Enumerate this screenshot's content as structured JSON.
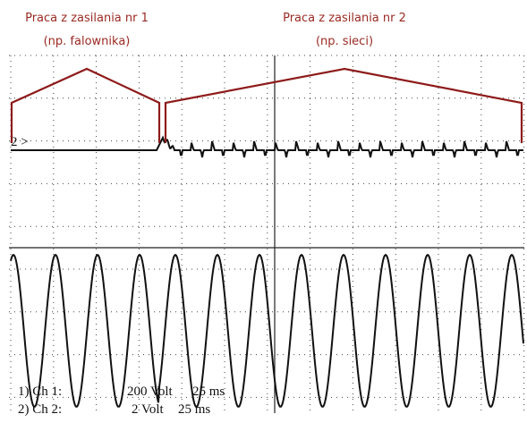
{
  "annotations": [
    {
      "title": "Praca z zasilania nr 1",
      "subtitle": "(np. falownika)"
    },
    {
      "title": "Praca z zasilania nr 2",
      "subtitle": "(np. sieci)"
    }
  ],
  "trace_marker": "2 >",
  "channels": [
    {
      "name": "1) Ch 1:",
      "scale": "200 Volt",
      "time": "25 ms"
    },
    {
      "name": "2) Ch 2:",
      "scale": "2 Volt",
      "time": "25 ms"
    }
  ]
}
